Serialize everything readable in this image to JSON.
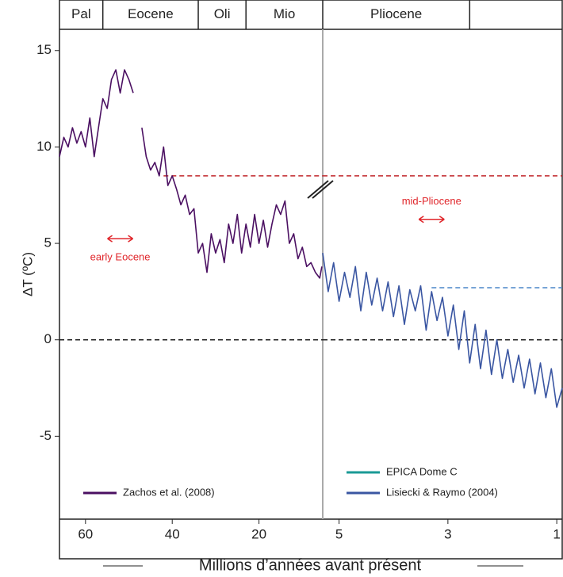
{
  "chart_data": [
    {
      "type": "line",
      "ylabel": "ΔT (ºC)",
      "xlabel": "Millions d’années avant présent",
      "xlim": [
        66,
        5.3
      ],
      "xticks": [
        60,
        40,
        20
      ],
      "ylim": [
        -9.3,
        16.1
      ],
      "yticks": [
        15,
        10,
        5,
        0,
        -5
      ],
      "epochs": [
        {
          "name": "Pal",
          "start": 66,
          "end": 56
        },
        {
          "name": "Eocene",
          "start": 56,
          "end": 34
        },
        {
          "name": "Oli",
          "start": 34,
          "end": 23
        },
        {
          "name": "Mio",
          "start": 23,
          "end": 5.3
        }
      ],
      "series": [
        {
          "name": "Zachos et al. (2008)",
          "color": "#4b1062",
          "x": [
            66,
            65,
            64,
            63,
            62,
            61,
            60,
            59,
            58,
            57,
            56,
            55,
            54,
            53,
            52,
            51,
            50,
            49,
            48,
            47,
            46,
            45,
            44,
            43,
            42,
            41,
            40,
            39,
            38,
            37,
            36,
            35,
            34,
            33,
            32,
            31,
            30,
            29,
            28,
            27,
            26,
            25,
            24,
            23,
            22,
            21,
            20,
            19,
            18,
            17,
            16,
            15,
            14,
            13,
            12,
            11,
            10,
            9,
            8,
            7,
            6,
            5.5
          ],
          "values": [
            9.5,
            10.5,
            10,
            11,
            10.2,
            10.8,
            10,
            11.5,
            9.5,
            11,
            12.5,
            12,
            13.5,
            14,
            12.8,
            14,
            13.5,
            12.8,
            null,
            11,
            9.5,
            8.8,
            9.2,
            8.5,
            10,
            8,
            8.5,
            7.8,
            7,
            7.5,
            6.5,
            6.8,
            4.5,
            5,
            3.5,
            5.5,
            4.5,
            5.2,
            4,
            6,
            5,
            6.5,
            4.5,
            6,
            4.8,
            6.5,
            5,
            6.2,
            4.8,
            6,
            7,
            6.5,
            7.2,
            5,
            5.5,
            4.2,
            4.8,
            3.8,
            4,
            3.5,
            3.2,
            3.8
          ]
        }
      ],
      "hlines": [
        {
          "y": 8.5,
          "color": "#c0262b",
          "xmin": 42
        },
        {
          "y": 0,
          "color": "#222222",
          "xmin": 66
        }
      ],
      "annotations": [
        {
          "text": "early Eocene",
          "x": 52,
          "y": 5
        }
      ]
    },
    {
      "type": "line",
      "xlim": [
        5.3,
        0.9
      ],
      "xticks": [
        5,
        3,
        1
      ],
      "ylim": [
        -9.3,
        16.1
      ],
      "epochs": [
        {
          "name": "Pliocene",
          "start": 5.3,
          "end": 2.6
        }
      ],
      "series": [
        {
          "name": "EPICA Dome C",
          "color": "#1a9a96",
          "x": [],
          "values": []
        },
        {
          "name": "Lisiecki & Raymo (2004)",
          "color": "#3a56a2",
          "x": [
            5.3,
            5.2,
            5.1,
            5.0,
            4.9,
            4.8,
            4.7,
            4.6,
            4.5,
            4.4,
            4.3,
            4.2,
            4.1,
            4.0,
            3.9,
            3.8,
            3.7,
            3.6,
            3.5,
            3.4,
            3.3,
            3.2,
            3.1,
            3.0,
            2.9,
            2.8,
            2.7,
            2.6,
            2.5,
            2.4,
            2.3,
            2.2,
            2.1,
            2.0,
            1.9,
            1.8,
            1.7,
            1.6,
            1.5,
            1.4,
            1.3,
            1.2,
            1.1,
            1.0,
            0.9
          ],
          "values": [
            4.5,
            2.5,
            4,
            2,
            3.5,
            2.2,
            3.8,
            1.5,
            3.5,
            1.8,
            3.2,
            1.5,
            3,
            1.2,
            2.8,
            0.8,
            2.6,
            1.5,
            2.8,
            0.5,
            2.5,
            1,
            2.2,
            0.2,
            1.8,
            -0.5,
            1.5,
            -1.2,
            0.8,
            -1.5,
            0.5,
            -1.8,
            0,
            -2,
            -0.5,
            -2.2,
            -0.8,
            -2.5,
            -1,
            -2.8,
            -1.2,
            -3,
            -1.5,
            -3.5,
            -2.5
          ]
        }
      ],
      "hlines": [
        {
          "y": 8.5,
          "color": "#c0262b",
          "xmin": 5.3
        },
        {
          "y": 2.7,
          "color": "#4a86c8",
          "xmin": 3.3
        },
        {
          "y": 0,
          "color": "#222222",
          "xmin": 5.3
        }
      ],
      "annotations": [
        {
          "text": "mid-Pliocene",
          "x": 3.3,
          "y": 6
        }
      ]
    }
  ]
}
